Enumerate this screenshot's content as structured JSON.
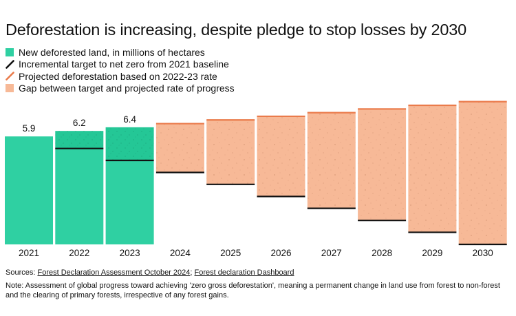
{
  "title": "Deforestation is increasing, despite pledge to stop losses by 2030",
  "legend": [
    {
      "label": "New deforested land, in millions of hectares",
      "kind": "square",
      "color": "#2fd0a2"
    },
    {
      "label": "Incremental target to net zero from 2021 baseline",
      "kind": "line",
      "color": "#111111"
    },
    {
      "label": "Projected deforestation based on 2022-23 rate",
      "kind": "line",
      "color": "#ea7b4b"
    },
    {
      "label": "Gap between target and projected rate of progress",
      "kind": "square",
      "color": "#f7b997"
    }
  ],
  "colors": {
    "actual": "#2fd0a2",
    "actual_gap": "#24c796",
    "target": "#111111",
    "projected": "#ea7b4b",
    "gap": "#f7b997",
    "speckle": "#b06e4e"
  },
  "chart_data": {
    "type": "bar",
    "title": "Deforestation is increasing, despite pledge to stop losses by 2030",
    "unit": "millions of hectares",
    "categories": [
      "2021",
      "2022",
      "2023",
      "2024",
      "2025",
      "2026",
      "2027",
      "2028",
      "2029",
      "2030"
    ],
    "actual": [
      5.9,
      6.2,
      6.4,
      null,
      null,
      null,
      null,
      null,
      null,
      null
    ],
    "actual_labels": [
      "5.9",
      "6.2",
      "6.4",
      "",
      "",
      "",
      "",
      "",
      "",
      ""
    ],
    "target": [
      5.9,
      5.24,
      4.59,
      3.93,
      3.28,
      2.62,
      1.97,
      1.31,
      0.66,
      0.0
    ],
    "projected": [
      null,
      null,
      6.4,
      6.6,
      6.8,
      7.0,
      7.2,
      7.4,
      7.6,
      7.8
    ],
    "ylim": [
      0,
      7.9
    ],
    "xlabel": "",
    "ylabel": ""
  },
  "sources": {
    "prefix": "Sources: ",
    "link1": "Forest Declaration Assessment October 2024",
    "separator": "; ",
    "link2": "Forest declaration Dashboard"
  },
  "note": "Note: Assessment of global progress toward achieving 'zero gross deforestation', meaning a permanent change in land use from forest to non-forest and the clearing of primary forests, irrespective of any forest gains."
}
